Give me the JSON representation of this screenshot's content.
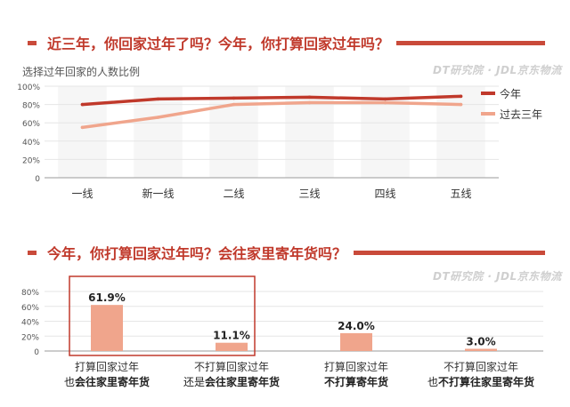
{
  "section1": {
    "title": "近三年，你回家过年了吗？今年，你打算回家过年吗？",
    "ylabel": "选择过年回家的人数比例",
    "watermark": "DT研究院 · JDL京东物流"
  },
  "section2": {
    "title": "今年，你打算回家过年吗？会往家里寄年货吗？",
    "watermark": "DT研究院 · JDL京东物流"
  },
  "colors": {
    "accent": "#c0392b",
    "this_year": "#c0392b",
    "past": "#f0a58c",
    "bar": "#f0a58c"
  },
  "chart_data": [
    {
      "type": "line",
      "categories": [
        "一线",
        "新一线",
        "二线",
        "三线",
        "四线",
        "五线"
      ],
      "series": [
        {
          "name": "今年",
          "values": [
            80,
            86,
            87,
            88,
            86,
            89
          ]
        },
        {
          "name": "过去三年",
          "values": [
            55,
            66,
            80,
            82,
            82,
            80
          ]
        }
      ],
      "yticks": [
        "0",
        "20%",
        "40%",
        "60%",
        "80%",
        "100%"
      ],
      "ylim": [
        0,
        100
      ],
      "ylabel": "选择过年回家的人数比例",
      "legend": "right"
    },
    {
      "type": "bar",
      "categories": [
        {
          "line1": "打算回家过年",
          "prefix2": "也",
          "bold2": "会往家里寄年货"
        },
        {
          "line1": "不打算回家过年",
          "prefix2": "还是",
          "bold2": "会往家里寄年货"
        },
        {
          "line1": "打算回家过年",
          "prefix2": "",
          "bold2": "不打算寄年货"
        },
        {
          "line1": "不打算回家过年",
          "prefix2": "也",
          "bold2": "不打算往家里寄年货"
        }
      ],
      "values": [
        61.9,
        11.1,
        24.0,
        3.0
      ],
      "value_labels": [
        "61.9%",
        "11.1%",
        "24.0%",
        "3.0%"
      ],
      "yticks": [
        "0",
        "20%",
        "40%",
        "60%",
        "80%"
      ],
      "ylim": [
        0,
        80
      ],
      "highlight_box": "first two groups"
    }
  ]
}
